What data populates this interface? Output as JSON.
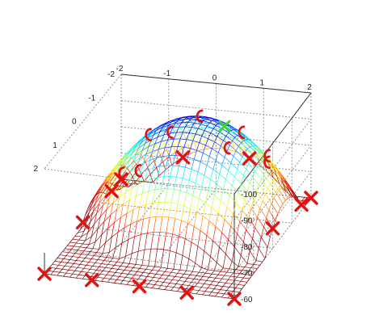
{
  "chart_data": {
    "type": "surface3d",
    "x_axis": {
      "range": [
        -2,
        2
      ],
      "tick_labels": [
        "-2",
        "-1",
        "0",
        "1",
        "2"
      ]
    },
    "y_axis": {
      "range": [
        -2,
        2
      ],
      "tick_labels": [
        "-2",
        "-1",
        "0",
        "1",
        "2"
      ]
    },
    "z_axis": {
      "range": [
        -100,
        -60
      ],
      "tick_labels": [
        "-100",
        "-90",
        "-80",
        "-70",
        "-60"
      ]
    },
    "grid": true,
    "colormap": "jet",
    "surface": "concave quadratic, peak near (0, 0)",
    "points_x_marker": [
      [
        -2,
        -2
      ],
      [
        -1,
        -2
      ],
      [
        0,
        -2
      ],
      [
        1,
        -2
      ],
      [
        2,
        -2
      ],
      [
        -2,
        0
      ],
      [
        2,
        0
      ],
      [
        -2,
        1.5
      ],
      [
        2,
        1.5
      ],
      [
        -2,
        2
      ],
      [
        -0.7,
        2
      ],
      [
        0.7,
        2
      ],
      [
        2,
        2
      ]
    ],
    "points_c_marker": [
      [
        -1.5,
        1.6
      ],
      [
        -1,
        0.9
      ],
      [
        0,
        1.1
      ],
      [
        0.8,
        1.3
      ],
      [
        1.3,
        1.4
      ],
      [
        -1.2,
        0
      ],
      [
        -0.3,
        0.3
      ],
      [
        0.9,
        0.3
      ],
      [
        1.5,
        0.9
      ]
    ],
    "best_point": [
      0.4,
      1.45
    ],
    "colors": {
      "markers": "#e01212",
      "best_marker": "#3cd23c",
      "axes": "#333333",
      "grid": "#8a8a8a"
    }
  }
}
